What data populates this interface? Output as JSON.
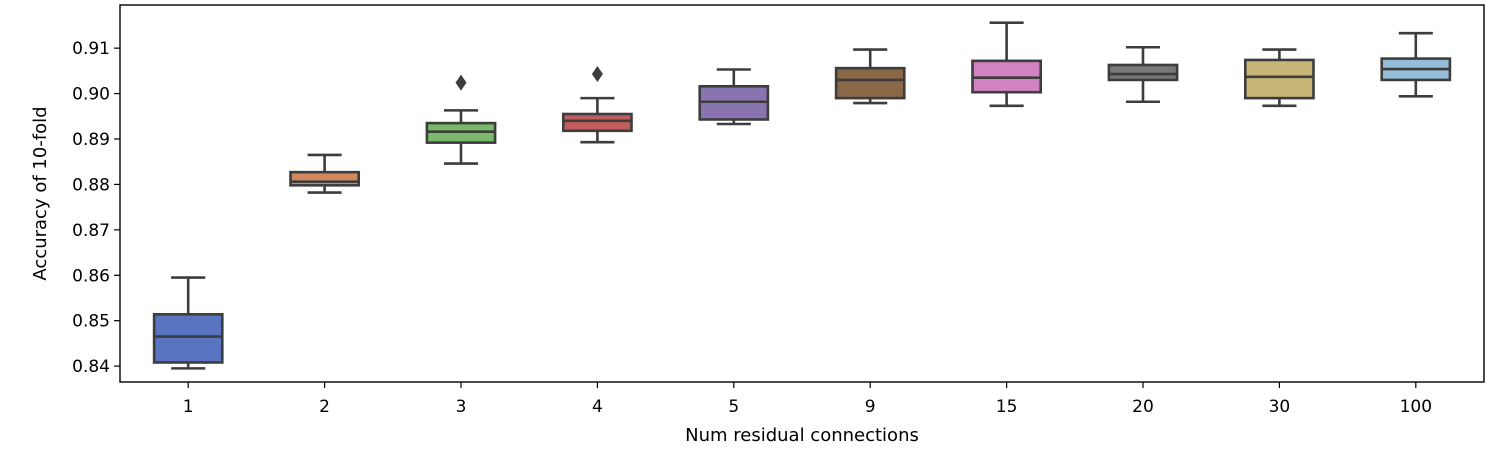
{
  "chart_data": {
    "type": "box",
    "xlabel": "Num residual connections",
    "ylabel": "Accuracy of 10-fold",
    "ylim": [
      0.8365,
      0.9195
    ],
    "yticks": [
      0.84,
      0.85,
      0.86,
      0.87,
      0.88,
      0.89,
      0.9,
      0.91
    ],
    "ytick_labels": [
      "0.84",
      "0.85",
      "0.86",
      "0.87",
      "0.88",
      "0.89",
      "0.90",
      "0.91"
    ],
    "categories": [
      "1",
      "2",
      "3",
      "4",
      "5",
      "9",
      "15",
      "20",
      "30",
      "100"
    ],
    "grid": false,
    "boxes": [
      {
        "category": "1",
        "whisker_low": 0.8395,
        "q1": 0.8408,
        "median": 0.8465,
        "q3": 0.8514,
        "whisker_high": 0.8595,
        "outliers": [],
        "color": "#5975c2"
      },
      {
        "category": "2",
        "whisker_low": 0.8782,
        "q1": 0.8798,
        "median": 0.8806,
        "q3": 0.8827,
        "whisker_high": 0.8865,
        "outliers": [],
        "color": "#d1885c"
      },
      {
        "category": "3",
        "whisker_low": 0.8846,
        "q1": 0.8892,
        "median": 0.8916,
        "q3": 0.8935,
        "whisker_high": 0.8963,
        "outliers": [
          0.9024
        ],
        "color": "#79ba6a"
      },
      {
        "category": "4",
        "whisker_low": 0.8893,
        "q1": 0.8918,
        "median": 0.894,
        "q3": 0.8955,
        "whisker_high": 0.899,
        "outliers": [
          0.9043
        ],
        "color": "#c15d5d"
      },
      {
        "category": "5",
        "whisker_low": 0.8933,
        "q1": 0.8943,
        "median": 0.8982,
        "q3": 0.9016,
        "whisker_high": 0.9053,
        "outliers": [],
        "color": "#8a74b0"
      },
      {
        "category": "9",
        "whisker_low": 0.8979,
        "q1": 0.899,
        "median": 0.903,
        "q3": 0.9056,
        "whisker_high": 0.9097,
        "outliers": [],
        "color": "#8a6746"
      },
      {
        "category": "15",
        "whisker_low": 0.8973,
        "q1": 0.9003,
        "median": 0.9035,
        "q3": 0.9072,
        "whisker_high": 0.9156,
        "outliers": [],
        "color": "#d182c3"
      },
      {
        "category": "20",
        "whisker_low": 0.8982,
        "q1": 0.903,
        "median": 0.9043,
        "q3": 0.9063,
        "whisker_high": 0.9102,
        "outliers": [],
        "color": "#787878"
      },
      {
        "category": "30",
        "whisker_low": 0.8973,
        "q1": 0.899,
        "median": 0.9037,
        "q3": 0.9074,
        "whisker_high": 0.9097,
        "outliers": [],
        "color": "#c6b677"
      },
      {
        "category": "100",
        "whisker_low": 0.8994,
        "q1": 0.903,
        "median": 0.9054,
        "q3": 0.9077,
        "whisker_high": 0.9133,
        "outliers": [],
        "color": "#96bdd9"
      }
    ]
  }
}
